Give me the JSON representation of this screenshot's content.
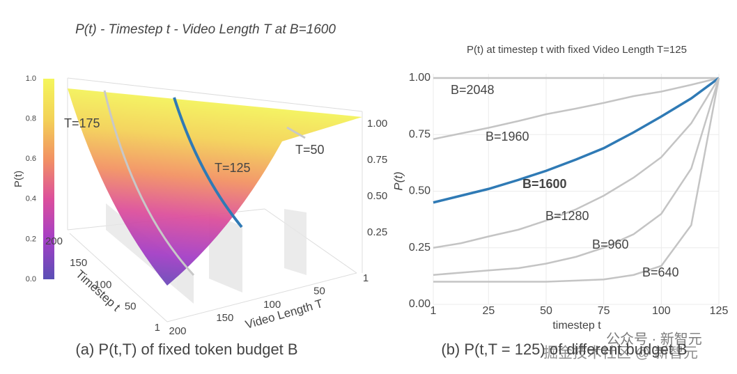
{
  "chart_data": [
    {
      "type": "surface",
      "title": "P(t) - Timestep t - Video Length T at B=1600",
      "zlabel": "P(t)",
      "xlabel": "Timestep t",
      "ylabel": "Video Length T",
      "clim": [
        0,
        1
      ],
      "cticks": [
        {
          "value": 0,
          "label": "0.0"
        },
        0.2,
        0.4,
        0.6,
        0.8,
        {
          "value": 1,
          "label": "1.0"
        }
      ],
      "colorscale": [
        "#5a4fb5",
        "#a43fc6",
        "#dc4f9c",
        "#f29263",
        "#f3d257",
        "#f4f65c"
      ],
      "zlim": [
        0,
        1
      ],
      "zticks": [
        0.25,
        {
          "value": 0.5,
          "label": "0.50"
        },
        0.75,
        {
          "value": 1,
          "label": "1.00"
        }
      ],
      "xlim": [
        1,
        200
      ],
      "xticks": [
        1,
        50,
        100,
        150,
        200
      ],
      "ylim": [
        1,
        200
      ],
      "yticks": [
        1,
        50,
        100,
        150,
        200
      ],
      "annotations": [
        "T=175",
        "T=125",
        "T=50"
      ],
      "highlight_color": "#2f7ab5",
      "caption": "(a) P(t,T) of fixed token budget B"
    },
    {
      "type": "line",
      "title": "P(t) at timestep t with fixed Video Length T=125",
      "xlabel": "timestep t",
      "ylabel": "P(t)",
      "x": [
        1,
        13,
        25,
        38,
        50,
        63,
        75,
        88,
        100,
        113,
        125
      ],
      "series": [
        {
          "name": "B=2048",
          "color": "#c4c4c4",
          "values": [
            1,
            1,
            1,
            1,
            1,
            1,
            1,
            1,
            1,
            1,
            1
          ]
        },
        {
          "name": "B=1960",
          "color": "#c4c4c4",
          "values": [
            0.73,
            0.755,
            0.78,
            0.81,
            0.84,
            0.865,
            0.89,
            0.92,
            0.94,
            0.97,
            1
          ]
        },
        {
          "name": "B=1600",
          "color": "#2f7ab5",
          "values": [
            0.45,
            0.48,
            0.51,
            0.55,
            0.59,
            0.64,
            0.69,
            0.76,
            0.83,
            0.91,
            1
          ]
        },
        {
          "name": "B=1280",
          "color": "#c4c4c4",
          "values": [
            0.25,
            0.27,
            0.3,
            0.33,
            0.37,
            0.42,
            0.48,
            0.56,
            0.65,
            0.8,
            1
          ]
        },
        {
          "name": "B=960",
          "color": "#c4c4c4",
          "values": [
            0.13,
            0.14,
            0.15,
            0.16,
            0.18,
            0.21,
            0.25,
            0.31,
            0.4,
            0.6,
            1
          ]
        },
        {
          "name": "B=640",
          "color": "#c4c4c4",
          "values": [
            0.1,
            0.1,
            0.1,
            0.1,
            0.1,
            0.105,
            0.11,
            0.13,
            0.17,
            0.35,
            1
          ]
        }
      ],
      "xlim": [
        1,
        125
      ],
      "xticks": [
        1,
        25,
        50,
        75,
        100,
        125
      ],
      "ylim": [
        0,
        1
      ],
      "yticks": [
        {
          "value": 0,
          "label": "0.00"
        },
        0.25,
        {
          "value": 0.5,
          "label": "0.50"
        },
        0.75,
        {
          "value": 1,
          "label": "1.00"
        }
      ],
      "grid": true,
      "caption": "(b) P(t,T = 125) of different budget B"
    }
  ],
  "watermark": [
    "公众号 · 新智元",
    "掘金技术社区 @ 新智元"
  ]
}
